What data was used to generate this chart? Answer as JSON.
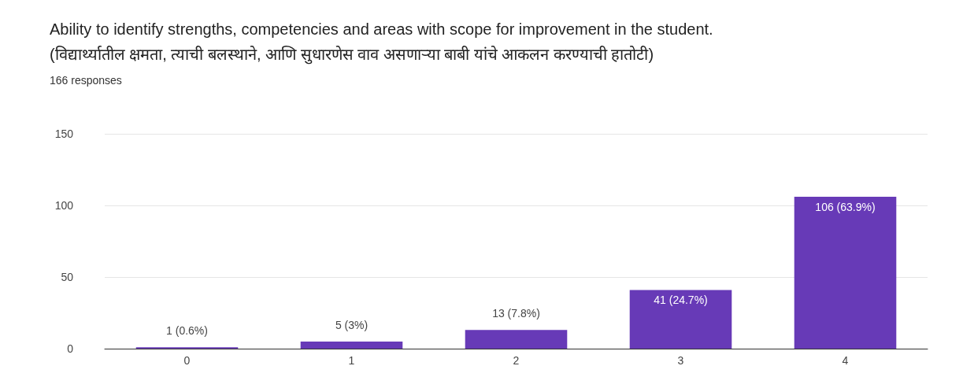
{
  "chart_data": {
    "type": "bar",
    "title": "Ability to identify strengths, competencies and areas with scope for improvement in the student.\n(विद्यार्थ्यातील क्षमता, त्याची बलस्थाने, आणि सुधारणेस वाव असणाऱ्या बाबी यांचे आकलन करण्याची हातोटी)",
    "subtitle": "166 responses",
    "categories": [
      "0",
      "1",
      "2",
      "3",
      "4"
    ],
    "values": [
      1,
      5,
      13,
      41,
      106
    ],
    "value_labels": [
      "1 (0.6%)",
      "5 (3%)",
      "13 (7.8%)",
      "41 (24.7%)",
      "106 (63.9%)"
    ],
    "color": "#673ab7",
    "ylim": [
      0,
      150
    ],
    "yticks": [
      0,
      50,
      100,
      150
    ],
    "grid": "y"
  }
}
